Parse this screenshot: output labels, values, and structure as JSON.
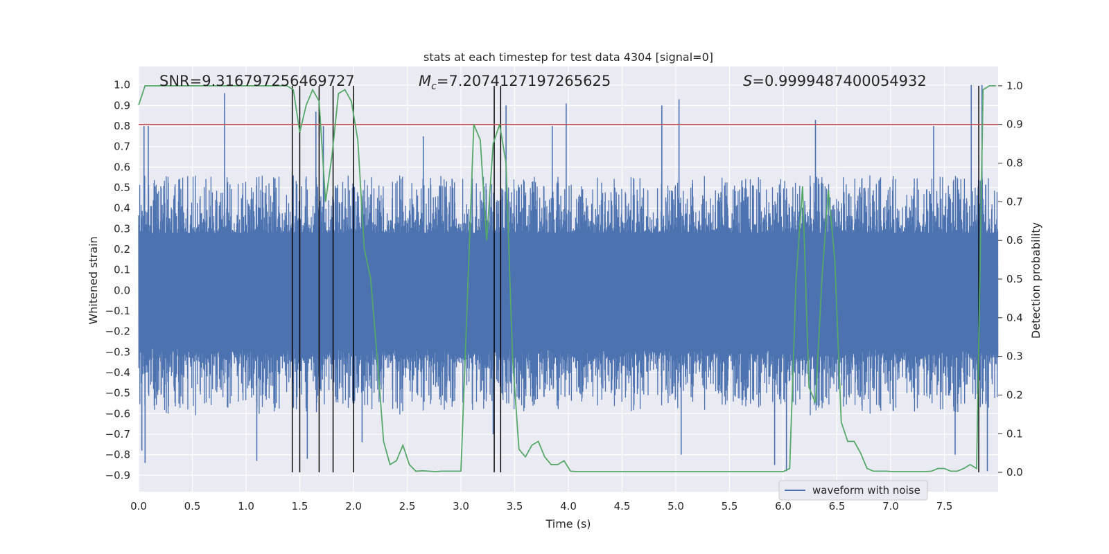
{
  "chart_data": {
    "type": "line",
    "title": "stats at each timestep for test data 4304 [signal=0]",
    "xlabel": "Time (s)",
    "ylabel_left": "Whitened strain",
    "ylabel_right": "Detection probability",
    "xlim": [
      0.0,
      8.0
    ],
    "ylim_left": [
      -0.98,
      1.09
    ],
    "ylim_right": [
      -0.05,
      1.05
    ],
    "x_ticks": [
      "0.0",
      "0.5",
      "1.0",
      "1.5",
      "2.0",
      "2.5",
      "3.0",
      "3.5",
      "4.0",
      "4.5",
      "5.0",
      "5.5",
      "6.0",
      "6.5",
      "7.0",
      "7.5"
    ],
    "y_left_ticks": [
      "1.0",
      "0.9",
      "0.8",
      "0.7",
      "0.6",
      "0.5",
      "0.4",
      "0.3",
      "0.2",
      "0.1",
      "0.0",
      "-0.1",
      "-0.2",
      "-0.3",
      "-0.4",
      "-0.5",
      "-0.6",
      "-0.7",
      "-0.8",
      "-0.9"
    ],
    "y_right_ticks": [
      "1.0",
      "0.9",
      "0.8",
      "0.7",
      "0.6",
      "0.5",
      "0.4",
      "0.3",
      "0.2",
      "0.1",
      "0.0"
    ],
    "annotations": {
      "snr": "SNR=9.316797256469727",
      "mc_symbol": "M",
      "mc_sub": "c",
      "mc_value": "=7.2074127197265625",
      "s_symbol": "S",
      "s_value": "=0.9999487400054932"
    },
    "threshold": {
      "value_right_axis": 0.9,
      "color": "#c44e52"
    },
    "detection_times": [
      1.43,
      1.5,
      1.68,
      1.81,
      2.0,
      3.31,
      3.37,
      7.82
    ],
    "series": [
      {
        "name": "waveform with noise",
        "color": "#4c72b0",
        "axis": "left",
        "envelope": "dense noise, core approx ±0.3, peaks approx ±0.8 to ±1.0",
        "spikes": [
          {
            "t": 0.05,
            "v": 0.8
          },
          {
            "t": 0.09,
            "v": 0.8
          },
          {
            "t": 0.8,
            "v": 0.96
          },
          {
            "t": 1.65,
            "v": 0.87
          },
          {
            "t": 1.72,
            "v": 0.8
          },
          {
            "t": 2.65,
            "v": 0.75
          },
          {
            "t": 3.42,
            "v": 0.9
          },
          {
            "t": 3.85,
            "v": 0.8
          },
          {
            "t": 3.98,
            "v": 0.91
          },
          {
            "t": 4.87,
            "v": 0.9
          },
          {
            "t": 5.03,
            "v": 0.93
          },
          {
            "t": 6.3,
            "v": 0.83
          },
          {
            "t": 7.4,
            "v": 0.8
          },
          {
            "t": 7.75,
            "v": 1.0
          },
          {
            "t": 7.85,
            "v": 1.0
          },
          {
            "t": 0.03,
            "v": -0.78
          },
          {
            "t": 0.06,
            "v": -0.84
          },
          {
            "t": 1.1,
            "v": -0.83
          },
          {
            "t": 1.57,
            "v": -0.82
          },
          {
            "t": 2.08,
            "v": -0.74
          },
          {
            "t": 3.3,
            "v": -0.7
          },
          {
            "t": 5.05,
            "v": -0.8
          },
          {
            "t": 5.92,
            "v": -0.85
          },
          {
            "t": 6.03,
            "v": -0.88
          },
          {
            "t": 7.6,
            "v": -0.8
          },
          {
            "t": 7.9,
            "v": -0.88
          }
        ]
      },
      {
        "name": "detection probability",
        "color": "#55a868",
        "axis": "right",
        "x": [
          0.0,
          0.06,
          0.12,
          0.18,
          0.24,
          0.3,
          0.36,
          0.42,
          0.48,
          0.54,
          0.6,
          0.66,
          0.72,
          0.78,
          0.84,
          0.9,
          0.96,
          1.02,
          1.08,
          1.14,
          1.2,
          1.26,
          1.32,
          1.38,
          1.44,
          1.5,
          1.56,
          1.62,
          1.68,
          1.74,
          1.8,
          1.86,
          1.92,
          1.98,
          2.04,
          2.1,
          2.16,
          2.22,
          2.28,
          2.34,
          2.4,
          2.46,
          2.52,
          2.58,
          2.64,
          2.7,
          2.76,
          2.82,
          2.88,
          2.94,
          3.0,
          3.06,
          3.12,
          3.18,
          3.24,
          3.3,
          3.36,
          3.42,
          3.48,
          3.54,
          3.6,
          3.66,
          3.72,
          3.78,
          3.84,
          3.9,
          3.96,
          4.02,
          4.08,
          4.14,
          4.2,
          4.26,
          4.32,
          4.38,
          4.44,
          4.5,
          4.56,
          4.62,
          4.68,
          4.74,
          4.8,
          4.86,
          4.92,
          4.98,
          5.04,
          5.1,
          5.16,
          5.22,
          5.28,
          5.34,
          5.4,
          5.46,
          5.52,
          5.58,
          5.64,
          5.7,
          5.76,
          5.82,
          5.88,
          5.94,
          6.0,
          6.06,
          6.12,
          6.18,
          6.24,
          6.3,
          6.36,
          6.42,
          6.48,
          6.54,
          6.6,
          6.66,
          6.72,
          6.78,
          6.84,
          6.9,
          6.96,
          7.02,
          7.08,
          7.14,
          7.2,
          7.26,
          7.32,
          7.38,
          7.44,
          7.5,
          7.56,
          7.62,
          7.68,
          7.74,
          7.8,
          7.86,
          7.92,
          7.98
        ],
        "values": [
          0.95,
          1.0,
          1.0,
          1.0,
          1.0,
          1.0,
          1.0,
          1.0,
          1.0,
          1.0,
          1.0,
          1.0,
          1.0,
          1.0,
          1.0,
          1.0,
          1.0,
          1.0,
          1.0,
          1.0,
          1.0,
          1.0,
          1.0,
          1.0,
          0.99,
          0.88,
          0.95,
          0.99,
          0.96,
          0.7,
          0.82,
          0.98,
          0.99,
          0.96,
          0.86,
          0.58,
          0.5,
          0.3,
          0.08,
          0.02,
          0.03,
          0.07,
          0.02,
          0.003,
          0.004,
          0.003,
          0.002,
          0.003,
          0.003,
          0.003,
          0.003,
          0.45,
          0.9,
          0.86,
          0.6,
          0.85,
          0.9,
          0.8,
          0.3,
          0.06,
          0.04,
          0.07,
          0.08,
          0.04,
          0.02,
          0.02,
          0.03,
          0.003,
          0.002,
          0.002,
          0.002,
          0.002,
          0.002,
          0.002,
          0.002,
          0.002,
          0.002,
          0.002,
          0.002,
          0.002,
          0.002,
          0.002,
          0.002,
          0.002,
          0.002,
          0.002,
          0.002,
          0.002,
          0.002,
          0.002,
          0.002,
          0.002,
          0.002,
          0.002,
          0.002,
          0.002,
          0.002,
          0.002,
          0.002,
          0.002,
          0.002,
          0.01,
          0.5,
          0.74,
          0.22,
          0.18,
          0.5,
          0.73,
          0.55,
          0.13,
          0.08,
          0.08,
          0.05,
          0.01,
          0.003,
          0.003,
          0.003,
          0.002,
          0.002,
          0.002,
          0.002,
          0.002,
          0.002,
          0.003,
          0.01,
          0.01,
          0.003,
          0.003,
          0.01,
          0.02,
          0.01,
          0.99,
          1.0,
          1.0
        ]
      }
    ],
    "legend": {
      "placement": "lower-right",
      "label": "waveform with noise"
    }
  }
}
